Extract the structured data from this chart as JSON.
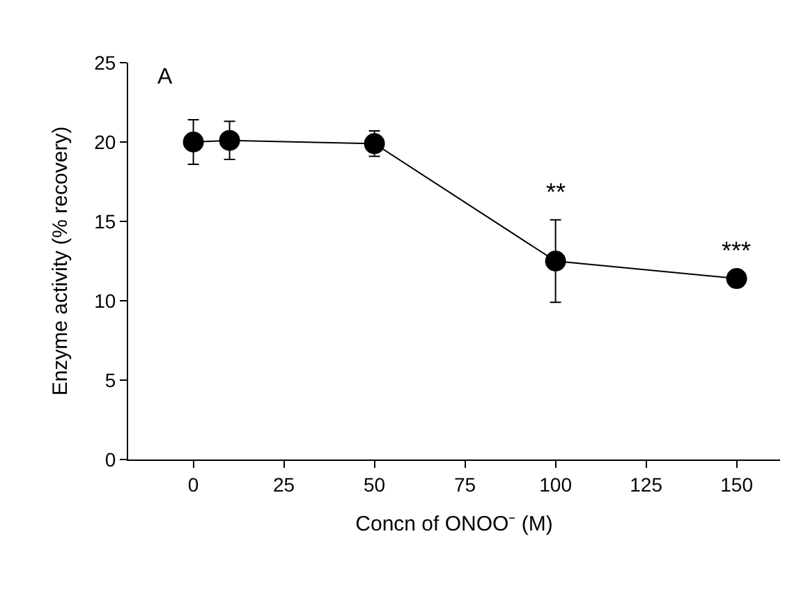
{
  "chart_data": {
    "type": "line",
    "xlabel": "Concn of ONOO⁻ (M)",
    "ylabel": "Enzyme activity (% recovery)",
    "x": [
      0,
      10,
      50,
      100,
      150
    ],
    "series": [
      {
        "color": "#000000",
        "values": [
          20.0,
          20.1,
          19.9,
          12.5,
          11.4
        ],
        "errors": [
          1.4,
          1.2,
          0.8,
          2.6,
          null
        ]
      }
    ],
    "xlim": [
      -18,
      162
    ],
    "xticks": [
      0,
      25,
      50,
      75,
      100,
      125,
      150
    ],
    "ylim": [
      0,
      25
    ],
    "yticks": [
      0,
      5,
      10,
      15,
      20,
      25
    ],
    "legend": false,
    "marker": "circle",
    "line_style": "solid",
    "annotations": [
      "A",
      {
        "text": "**",
        "x": 100,
        "y": 12.5
      },
      {
        "text": "***",
        "x": 150,
        "y": 11.4
      }
    ]
  }
}
